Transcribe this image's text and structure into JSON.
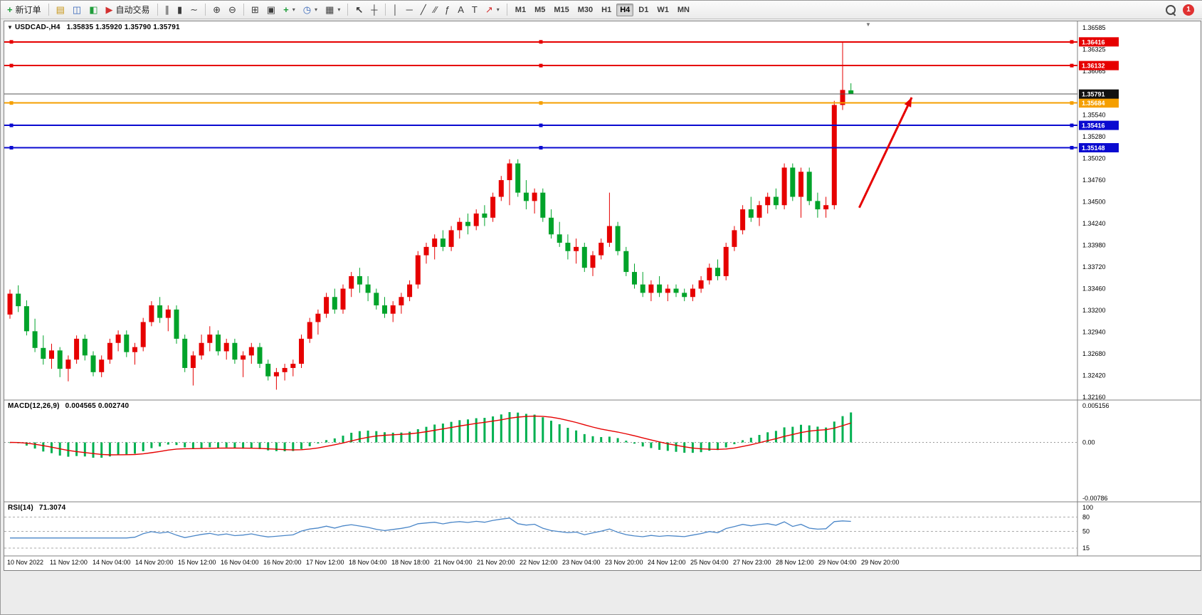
{
  "toolbar": {
    "new_order_label": "新订单",
    "autotrading_label": "自动交易",
    "timeframes": {
      "items": [
        "M1",
        "M5",
        "M15",
        "M30",
        "H1",
        "H4",
        "D1",
        "W1",
        "MN"
      ],
      "selected": "H4"
    },
    "notification_count": "1"
  },
  "icons": {
    "new_order": "+",
    "new_chart": "▤",
    "profiles": "◫",
    "data_window": "◧",
    "autotrading": "▶",
    "bars": "∥",
    "candles": "▮",
    "linechart": "∼",
    "zoom_in": "⊕",
    "zoom_out": "⊖",
    "tile": "⊞",
    "cascade": "▣",
    "indicators": "+",
    "periods": "◷",
    "templates": "▦",
    "cursor": "↖",
    "crosshair": "┼",
    "vline": "│",
    "hline": "─",
    "trendline": "╱",
    "channel": "∕∕",
    "fibonacci": "ƒ",
    "text": "A",
    "textlabel": "T",
    "arrows": "↗",
    "caret": "▾",
    "one_click": "▼",
    "shift_marker": "▼"
  },
  "chart": {
    "header_symbol": "USDCAD-,H4",
    "header_ohlc": "1.35835 1.35920 1.35790 1.35791",
    "macd_label": "MACD(12,26,9)",
    "macd_values": "0.004565 0.002740",
    "rsi_label": "RSI(14)",
    "rsi_value": "71.3074"
  },
  "chart_data": {
    "type": "candlestick",
    "symbol": "USDCAD",
    "timeframe": "H4",
    "last_ohlc": {
      "open": 1.35835,
      "high": 1.3592,
      "low": 1.3579,
      "close": 1.35791
    },
    "current_bid": {
      "price": 1.35791,
      "label": "1.35791",
      "color": "#111111"
    },
    "colors": {
      "bull": "#e60000",
      "bear": "#00a32a",
      "macd_histogram": "#00b050",
      "macd_signal": "#e60000",
      "rsi_line": "#4a86c8"
    },
    "price_axis": {
      "max": 1.36585,
      "min": 1.3216,
      "ticks": [
        "1.36585",
        "1.36325",
        "1.36065",
        "1.35540",
        "1.35280",
        "1.35020",
        "1.34760",
        "1.34500",
        "1.34240",
        "1.33980",
        "1.33720",
        "1.33460",
        "1.33200",
        "1.32940",
        "1.32680",
        "1.32420",
        "1.32160"
      ]
    },
    "levels": [
      {
        "price": 1.36416,
        "label": "1.36416",
        "color": "#e60000",
        "width": 2
      },
      {
        "price": 1.36132,
        "label": "1.36132",
        "color": "#e60000",
        "width": 2
      },
      {
        "price": 1.35684,
        "label": "1.35684",
        "color": "#f59f00",
        "width": 2
      },
      {
        "price": 1.35416,
        "label": "1.35416",
        "color": "#0a0ad0",
        "width": 2
      },
      {
        "price": 1.35148,
        "label": "1.35148",
        "color": "#0a0ad0",
        "width": 2
      }
    ],
    "candles": [
      [
        1.3315,
        1.3345,
        1.331,
        1.334
      ],
      [
        1.334,
        1.335,
        1.3318,
        1.3325
      ],
      [
        1.3325,
        1.3332,
        1.329,
        1.3295
      ],
      [
        1.3295,
        1.331,
        1.327,
        1.3275
      ],
      [
        1.3275,
        1.329,
        1.3255,
        1.3262
      ],
      [
        1.3262,
        1.328,
        1.325,
        1.3272
      ],
      [
        1.3272,
        1.3276,
        1.324,
        1.325
      ],
      [
        1.325,
        1.3266,
        1.3235,
        1.3261
      ],
      [
        1.3261,
        1.329,
        1.3256,
        1.3286
      ],
      [
        1.3286,
        1.3291,
        1.326,
        1.3266
      ],
      [
        1.3266,
        1.3271,
        1.3241,
        1.3246
      ],
      [
        1.3246,
        1.3266,
        1.324,
        1.3261
      ],
      [
        1.3261,
        1.3286,
        1.3256,
        1.3281
      ],
      [
        1.3281,
        1.3296,
        1.3271,
        1.3291
      ],
      [
        1.3291,
        1.3296,
        1.3264,
        1.327
      ],
      [
        1.327,
        1.3281,
        1.3255,
        1.3276
      ],
      [
        1.3276,
        1.3311,
        1.3271,
        1.3306
      ],
      [
        1.3306,
        1.3331,
        1.3301,
        1.3326
      ],
      [
        1.3326,
        1.3336,
        1.3305,
        1.3311
      ],
      [
        1.3311,
        1.3326,
        1.3295,
        1.3321
      ],
      [
        1.3321,
        1.3326,
        1.328,
        1.3286
      ],
      [
        1.3286,
        1.3291,
        1.3246,
        1.3251
      ],
      [
        1.3251,
        1.3271,
        1.323,
        1.3266
      ],
      [
        1.3266,
        1.3291,
        1.3261,
        1.3281
      ],
      [
        1.3281,
        1.3301,
        1.3271,
        1.3291
      ],
      [
        1.3291,
        1.3296,
        1.3266,
        1.3271
      ],
      [
        1.3271,
        1.3286,
        1.3261,
        1.3281
      ],
      [
        1.3281,
        1.3286,
        1.3256,
        1.3261
      ],
      [
        1.3261,
        1.3271,
        1.324,
        1.3266
      ],
      [
        1.3266,
        1.3281,
        1.3256,
        1.3276
      ],
      [
        1.3276,
        1.3281,
        1.3251,
        1.3256
      ],
      [
        1.3256,
        1.3261,
        1.3236,
        1.3241
      ],
      [
        1.3241,
        1.3251,
        1.3225,
        1.3246
      ],
      [
        1.3246,
        1.3256,
        1.3236,
        1.3251
      ],
      [
        1.3251,
        1.3261,
        1.3241,
        1.3256
      ],
      [
        1.3256,
        1.3291,
        1.3251,
        1.3286
      ],
      [
        1.3286,
        1.3311,
        1.3281,
        1.3306
      ],
      [
        1.3306,
        1.3321,
        1.3291,
        1.3316
      ],
      [
        1.3316,
        1.3341,
        1.3311,
        1.3336
      ],
      [
        1.3336,
        1.3346,
        1.3316,
        1.3321
      ],
      [
        1.3321,
        1.3351,
        1.3316,
        1.3346
      ],
      [
        1.3346,
        1.3366,
        1.3336,
        1.3361
      ],
      [
        1.3361,
        1.3371,
        1.3341,
        1.3351
      ],
      [
        1.3351,
        1.3361,
        1.3331,
        1.3341
      ],
      [
        1.3341,
        1.3346,
        1.3321,
        1.3326
      ],
      [
        1.3326,
        1.3336,
        1.3311,
        1.3316
      ],
      [
        1.3316,
        1.3331,
        1.3306,
        1.3326
      ],
      [
        1.3326,
        1.3341,
        1.3316,
        1.3336
      ],
      [
        1.3336,
        1.3356,
        1.3331,
        1.3351
      ],
      [
        1.3351,
        1.3391,
        1.3346,
        1.3386
      ],
      [
        1.3386,
        1.3401,
        1.3376,
        1.3396
      ],
      [
        1.3396,
        1.3411,
        1.3381,
        1.3406
      ],
      [
        1.3406,
        1.3416,
        1.3391,
        1.3396
      ],
      [
        1.3396,
        1.3421,
        1.3391,
        1.3416
      ],
      [
        1.3416,
        1.3431,
        1.3406,
        1.3426
      ],
      [
        1.3426,
        1.3436,
        1.3411,
        1.3421
      ],
      [
        1.3421,
        1.3441,
        1.3416,
        1.3436
      ],
      [
        1.3436,
        1.3446,
        1.3421,
        1.3431
      ],
      [
        1.3431,
        1.3461,
        1.3426,
        1.3456
      ],
      [
        1.3456,
        1.3481,
        1.3451,
        1.3476
      ],
      [
        1.3476,
        1.3501,
        1.3446,
        1.3496
      ],
      [
        1.3496,
        1.3501,
        1.3456,
        1.3461
      ],
      [
        1.3461,
        1.3476,
        1.3441,
        1.3451
      ],
      [
        1.3451,
        1.3466,
        1.3436,
        1.3461
      ],
      [
        1.3461,
        1.3466,
        1.3426,
        1.3431
      ],
      [
        1.3431,
        1.3441,
        1.3406,
        1.3411
      ],
      [
        1.3411,
        1.3426,
        1.3396,
        1.3401
      ],
      [
        1.3401,
        1.3411,
        1.3381,
        1.3391
      ],
      [
        1.3391,
        1.3406,
        1.3376,
        1.3396
      ],
      [
        1.3396,
        1.3401,
        1.3366,
        1.3371
      ],
      [
        1.3371,
        1.3391,
        1.3361,
        1.3386
      ],
      [
        1.3386,
        1.3406,
        1.3381,
        1.3401
      ],
      [
        1.3401,
        1.3461,
        1.3396,
        1.3421
      ],
      [
        1.3421,
        1.3426,
        1.3386,
        1.3391
      ],
      [
        1.3391,
        1.3396,
        1.3361,
        1.3366
      ],
      [
        1.3366,
        1.3376,
        1.3346,
        1.3351
      ],
      [
        1.3351,
        1.3366,
        1.3336,
        1.3341
      ],
      [
        1.3341,
        1.3356,
        1.3331,
        1.3351
      ],
      [
        1.3351,
        1.3361,
        1.3336,
        1.3341
      ],
      [
        1.3341,
        1.3351,
        1.3331,
        1.3346
      ],
      [
        1.3346,
        1.3351,
        1.3336,
        1.3341
      ],
      [
        1.3341,
        1.3346,
        1.3331,
        1.3336
      ],
      [
        1.3336,
        1.3351,
        1.3331,
        1.3346
      ],
      [
        1.3346,
        1.3361,
        1.3341,
        1.3356
      ],
      [
        1.3356,
        1.3376,
        1.3351,
        1.3371
      ],
      [
        1.3371,
        1.3381,
        1.3356,
        1.3361
      ],
      [
        1.3361,
        1.3401,
        1.3356,
        1.3396
      ],
      [
        1.3396,
        1.3421,
        1.3391,
        1.3416
      ],
      [
        1.3416,
        1.3446,
        1.3411,
        1.3441
      ],
      [
        1.3441,
        1.3456,
        1.3426,
        1.3431
      ],
      [
        1.3431,
        1.3451,
        1.3421,
        1.3446
      ],
      [
        1.3446,
        1.3461,
        1.3436,
        1.3456
      ],
      [
        1.3456,
        1.3466,
        1.3441,
        1.3446
      ],
      [
        1.3446,
        1.3496,
        1.3441,
        1.3491
      ],
      [
        1.3491,
        1.3496,
        1.3451,
        1.3456
      ],
      [
        1.3456,
        1.3491,
        1.3431,
        1.3486
      ],
      [
        1.3486,
        1.3491,
        1.3446,
        1.3451
      ],
      [
        1.3451,
        1.3461,
        1.3431,
        1.3441
      ],
      [
        1.3441,
        1.3456,
        1.3431,
        1.3446
      ],
      [
        1.3446,
        1.3571,
        1.3441,
        1.3566
      ],
      [
        1.3566,
        1.3642,
        1.356,
        1.3584
      ],
      [
        1.35835,
        1.3592,
        1.3579,
        1.35791
      ]
    ],
    "time_labels": [
      "10 Nov 2022",
      "11 Nov 12:00",
      "14 Nov 04:00",
      "14 Nov 20:00",
      "15 Nov 12:00",
      "16 Nov 04:00",
      "16 Nov 20:00",
      "17 Nov 12:00",
      "18 Nov 04:00",
      "18 Nov 18:00",
      "21 Nov 04:00",
      "21 Nov 20:00",
      "22 Nov 12:00",
      "23 Nov 04:00",
      "23 Nov 20:00",
      "24 Nov 12:00",
      "25 Nov 04:00",
      "27 Nov 23:00",
      "28 Nov 12:00",
      "29 Nov 04:00",
      "29 Nov 20:00"
    ],
    "macd": {
      "params": [
        12,
        26,
        9
      ],
      "display_values": [
        0.004565,
        0.00274
      ],
      "axis_ticks": [
        {
          "label": "0.005156",
          "v": 0.005156
        },
        {
          "label": "0.00",
          "v": 0
        },
        {
          "label": "-0.00786",
          "v": -0.00786
        }
      ]
    },
    "rsi": {
      "period": 14,
      "display_value": 71.3074,
      "axis_ticks": [
        {
          "label": "100",
          "v": 100
        },
        {
          "label": "80",
          "v": 80
        },
        {
          "label": "50",
          "v": 50
        },
        {
          "label": "15",
          "v": 15
        }
      ],
      "dashed_levels": [
        80,
        50,
        15
      ]
    },
    "annotations": [
      {
        "type": "arrow",
        "color": "#e60000",
        "width": 3,
        "from": {
          "bar": 102.0,
          "price": 1.3443
        },
        "to": {
          "bar": 108.3,
          "price": 1.3575
        }
      }
    ]
  }
}
